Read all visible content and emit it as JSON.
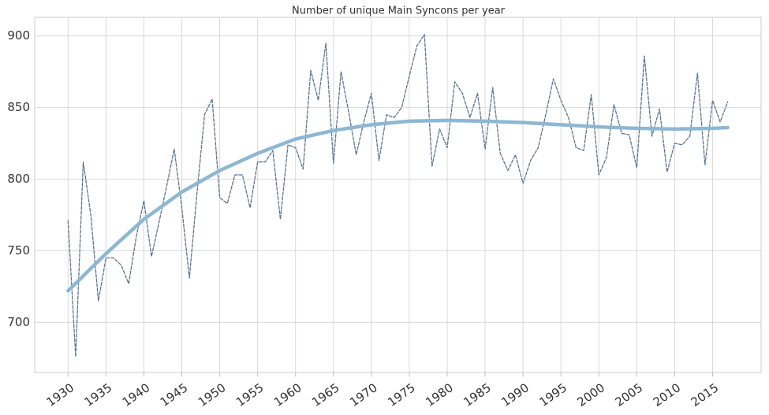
{
  "chart_data": {
    "type": "line",
    "title": "Number of unique Main Syncons per year",
    "series": [
      {
        "color": "#5b7591",
        "dashed": true,
        "width": 1.3,
        "x": [
          1930,
          1931,
          1932,
          1933,
          1934,
          1935,
          1936,
          1937,
          1938,
          1939,
          1940,
          1941,
          1942,
          1943,
          1944,
          1945,
          1946,
          1947,
          1948,
          1949,
          1950,
          1951,
          1952,
          1953,
          1954,
          1955,
          1956,
          1957,
          1958,
          1959,
          1960,
          1961,
          1962,
          1963,
          1964,
          1965,
          1966,
          1967,
          1968,
          1969,
          1970,
          1971,
          1972,
          1973,
          1974,
          1975,
          1976,
          1977,
          1978,
          1979,
          1980,
          1981,
          1982,
          1983,
          1984,
          1985,
          1986,
          1987,
          1988,
          1989,
          1990,
          1991,
          1992,
          1993,
          1994,
          1995,
          1996,
          1997,
          1998,
          1999,
          2000,
          2001,
          2002,
          2003,
          2004,
          2005,
          2006,
          2007,
          2008,
          2009,
          2010,
          2011,
          2012,
          2013,
          2014,
          2015,
          2016,
          2017
        ],
        "values": [
          771,
          676,
          812,
          775,
          715,
          745,
          745,
          740,
          727,
          760,
          785,
          746,
          770,
          795,
          821,
          780,
          731,
          790,
          845,
          856,
          787,
          783,
          803,
          803,
          780,
          812,
          812,
          820,
          772,
          824,
          822,
          807,
          876,
          855,
          895,
          811,
          875,
          847,
          817,
          840,
          860,
          813,
          845,
          843,
          850,
          872,
          893,
          901,
          809,
          835,
          822,
          868,
          860,
          843,
          860,
          821,
          864,
          818,
          806,
          817,
          797,
          813,
          822,
          845,
          870,
          855,
          843,
          822,
          820,
          859,
          803,
          815,
          852,
          832,
          831,
          808,
          886,
          830,
          849,
          805,
          825,
          824,
          830,
          874,
          810,
          855,
          840,
          854
        ]
      },
      {
        "color": "#8db7d2",
        "dashed": false,
        "width": 4.5,
        "x": [
          1930,
          1935,
          1940,
          1945,
          1950,
          1955,
          1960,
          1965,
          1970,
          1975,
          1980,
          1985,
          1990,
          1995,
          2000,
          2005,
          2010,
          2015,
          2017
        ],
        "values": [
          722,
          748,
          772,
          791,
          806,
          818,
          828,
          834,
          838,
          840.5,
          841,
          840.5,
          839.5,
          838,
          836.5,
          835.5,
          835,
          835.5,
          836
        ]
      }
    ],
    "xlim": [
      1925.6,
      2021.4
    ],
    "ylim": [
      665,
      913
    ],
    "xticks": [
      1930,
      1935,
      1940,
      1945,
      1950,
      1955,
      1960,
      1965,
      1970,
      1975,
      1980,
      1985,
      1990,
      1995,
      2000,
      2005,
      2010,
      2015
    ],
    "yticks": [
      700,
      750,
      800,
      850,
      900
    ],
    "grid": true
  }
}
